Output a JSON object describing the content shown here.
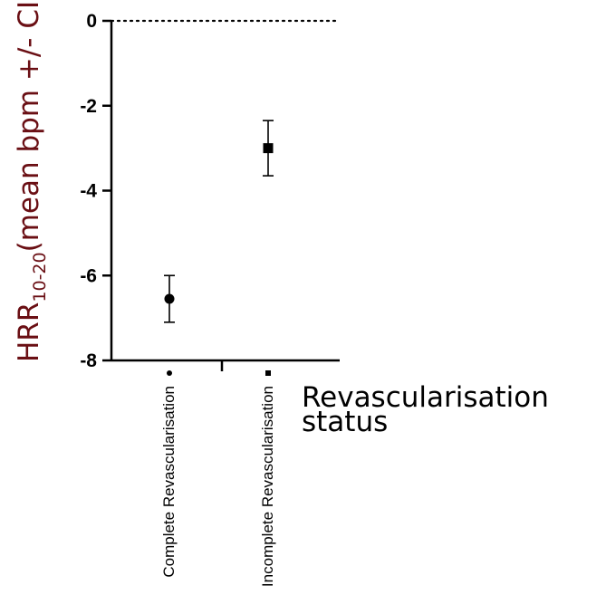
{
  "chart_data": {
    "type": "scatter",
    "title": "",
    "ylabel": {
      "main": "HRR",
      "subscript": "10-20",
      "suffix": "(mean bpm +/- CI)"
    },
    "xlabel": {
      "line1": "Revascularisation",
      "line2": "status"
    },
    "ylim": [
      -8,
      0
    ],
    "yticks": [
      0,
      -2,
      -4,
      -6,
      -8
    ],
    "ytick_labels": [
      "0",
      "-2",
      "-4",
      "-6",
      "-8"
    ],
    "reference_line": {
      "y": 0,
      "style": "dotted"
    },
    "categories": [
      "Complete Revascularisation",
      "Incomplete Revascularisation"
    ],
    "series": [
      {
        "category": "Complete Revascularisation",
        "marker": "circle",
        "mean": -6.55,
        "ci_low": -7.1,
        "ci_high": -6.0
      },
      {
        "category": "Incomplete Revascularisation",
        "marker": "square",
        "mean": -3.0,
        "ci_low": -3.65,
        "ci_high": -2.35
      }
    ],
    "grid": false,
    "legend": "none"
  }
}
